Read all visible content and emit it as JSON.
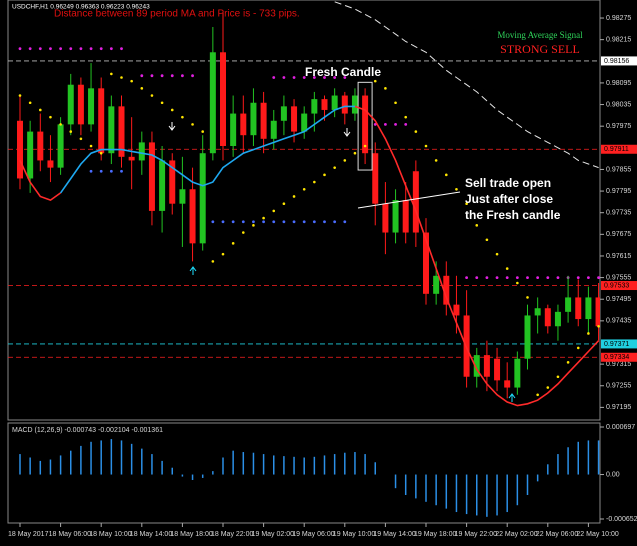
{
  "chart_data": {
    "type": "candlestick",
    "symbol_info": "USDCHF,H1 0.96249 0.96363 0.96223 0.96243",
    "distance_text": "Distance between 89 period MA and Price is - 733 pips.",
    "signal_title": "Moving Average Signal",
    "signal": "STRONG SELL",
    "annotations": [
      "Fresh Candle",
      "Sell trade open",
      "Just after close",
      "the Fresh candle"
    ],
    "categories": [
      "18 May 2017",
      null,
      null,
      null,
      "18 May 06:00",
      null,
      null,
      null,
      "18 May 10:00",
      null,
      null,
      null,
      "18 May 14:00",
      null,
      null,
      null,
      "18 May 18:00",
      null,
      null,
      null,
      "18 May 22:00",
      null,
      null,
      null,
      "19 May 02:00",
      null,
      null,
      null,
      "19 May 06:00",
      null,
      null,
      null,
      "19 May 10:00",
      null,
      null,
      null,
      "19 May 14:00",
      null,
      null,
      null,
      "19 May 18:00",
      null,
      null,
      null,
      "19 May 22:00",
      null,
      null,
      null,
      "22 May 02:00",
      null,
      null,
      null,
      "22 May 06:00",
      null,
      null,
      null,
      "22 May 10:00",
      null
    ],
    "open": [
      0.9799,
      0.9783,
      0.9796,
      0.9788,
      0.9786,
      0.9798,
      0.9809,
      0.9798,
      0.9808,
      0.979,
      0.9803,
      0.9789,
      0.9788,
      0.9793,
      0.9774,
      0.9788,
      0.9776,
      0.978,
      0.9765,
      0.979,
      0.9818,
      0.9792,
      0.9801,
      0.9795,
      0.9804,
      0.9794,
      0.9799,
      0.9803,
      0.9796,
      0.9801,
      0.9805,
      0.9802,
      0.9806,
      0.9801,
      0.9806,
      0.979,
      0.9776,
      0.9768,
      0.9777,
      0.9785,
      0.9768,
      0.9751,
      0.9756,
      0.9748,
      0.9745,
      0.9728,
      0.9734,
      0.9733,
      0.9727,
      0.9725,
      0.9733,
      0.9745,
      0.9747,
      0.9742,
      0.9746,
      0.975,
      0.9744,
      0.975
    ],
    "high": [
      0.9806,
      0.9799,
      0.9801,
      0.9795,
      0.98,
      0.9812,
      0.9811,
      0.9815,
      0.9811,
      0.9806,
      0.9806,
      0.98,
      0.9796,
      0.9796,
      0.9792,
      0.979,
      0.9789,
      0.9786,
      0.9795,
      0.9825,
      0.9829,
      0.9806,
      0.9806,
      0.9808,
      0.9807,
      0.9802,
      0.9806,
      0.9805,
      0.9803,
      0.9807,
      0.9806,
      0.9808,
      0.9807,
      0.9808,
      0.9808,
      0.9793,
      0.9782,
      0.978,
      0.9782,
      0.9788,
      0.9772,
      0.976,
      0.976,
      0.9756,
      0.9752,
      0.9736,
      0.9738,
      0.9736,
      0.9732,
      0.9735,
      0.9748,
      0.975,
      0.9748,
      0.9748,
      0.9756,
      0.9755,
      0.9753,
      0.9754
    ],
    "low": [
      0.978,
      0.9779,
      0.9785,
      0.9782,
      0.9784,
      0.9795,
      0.9795,
      0.9796,
      0.9788,
      0.9787,
      0.9786,
      0.978,
      0.9784,
      0.977,
      0.9768,
      0.9773,
      0.9764,
      0.976,
      0.9763,
      0.9788,
      0.9788,
      0.9789,
      0.979,
      0.9792,
      0.979,
      0.9791,
      0.9795,
      0.9793,
      0.9794,
      0.9796,
      0.9799,
      0.98,
      0.9798,
      0.9799,
      0.9787,
      0.977,
      0.9762,
      0.9765,
      0.9765,
      0.9764,
      0.9748,
      0.9748,
      0.9745,
      0.974,
      0.9725,
      0.9725,
      0.9724,
      0.9724,
      0.9722,
      0.9723,
      0.973,
      0.974,
      0.974,
      0.9738,
      0.9743,
      0.9742,
      0.974,
      0.9738
    ],
    "close": [
      0.9783,
      0.9796,
      0.9788,
      0.9786,
      0.9798,
      0.9809,
      0.9798,
      0.9808,
      0.979,
      0.9803,
      0.9789,
      0.9788,
      0.9793,
      0.9774,
      0.9788,
      0.9776,
      0.978,
      0.9765,
      0.979,
      0.9818,
      0.9792,
      0.9801,
      0.9795,
      0.9804,
      0.9794,
      0.9799,
      0.9803,
      0.9796,
      0.9801,
      0.9805,
      0.9802,
      0.9806,
      0.9801,
      0.9806,
      0.979,
      0.9776,
      0.9768,
      0.9777,
      0.9768,
      0.9768,
      0.9751,
      0.9756,
      0.9748,
      0.9745,
      0.9728,
      0.9734,
      0.9728,
      0.9727,
      0.9725,
      0.9733,
      0.9745,
      0.9747,
      0.9742,
      0.9746,
      0.975,
      0.9744,
      0.975,
      0.9742
    ],
    "up_color": "#22c322",
    "down_color": "#ff1a1a",
    "lines": [
      {
        "color": "#ff2a2a",
        "values": [
          0.9788,
          0.9782,
          0.9778,
          0.9777,
          0.9779,
          null,
          null,
          null,
          null,
          null,
          null,
          null,
          null,
          null,
          null,
          null,
          null,
          null,
          null,
          null,
          null,
          null,
          null,
          null,
          null,
          null,
          null,
          null,
          null,
          null,
          null,
          null,
          null,
          0.9803,
          0.9802,
          0.9799,
          0.9794,
          0.9788,
          0.9781,
          0.9774,
          0.9766,
          0.9758,
          0.975,
          0.9743,
          0.9736,
          0.973,
          0.9726,
          0.9723,
          0.9721,
          0.972,
          0.97205,
          0.97215,
          0.97235,
          0.9726,
          0.9729,
          0.9732,
          0.9735,
          0.9738
        ]
      },
      {
        "color": "#1ea8f0",
        "values": [
          null,
          null,
          null,
          null,
          0.9779,
          0.9783,
          0.9787,
          0.979,
          0.9791,
          0.9791,
          0.9791,
          0.97905,
          0.979,
          0.97895,
          0.9788,
          0.9786,
          0.9784,
          0.9782,
          0.9781,
          0.9782,
          0.9786,
          0.9788,
          0.979,
          0.9791,
          0.9792,
          0.9793,
          0.9794,
          0.9795,
          0.9796,
          0.9798,
          0.98,
          0.9802,
          0.9803,
          0.9803,
          null,
          null,
          null,
          null,
          null,
          null,
          null,
          null,
          null,
          null,
          null,
          null,
          null,
          null,
          null,
          null,
          null,
          null,
          null,
          null,
          null,
          null,
          null,
          null
        ]
      },
      {
        "color": "#e6e6e6",
        "dashed": true,
        "values": [
          null,
          null,
          null,
          null,
          null,
          null,
          null,
          null,
          null,
          null,
          null,
          null,
          null,
          null,
          null,
          null,
          null,
          null,
          null,
          null,
          null,
          null,
          null,
          null,
          null,
          null,
          null,
          null,
          null,
          null,
          null,
          0.9832,
          0.9831,
          0.983,
          0.98285,
          0.9827,
          0.9825,
          0.9823,
          0.9821,
          0.98195,
          0.9818,
          0.98155,
          0.9813,
          0.9811,
          0.9809,
          0.9807,
          0.98045,
          0.9802,
          0.98,
          0.9798,
          0.9796,
          0.97945,
          0.9793,
          0.97915,
          0.979,
          0.9788,
          0.9787,
          0.9786
        ]
      }
    ],
    "sar": {
      "color": "#ffe600",
      "values": [
        0.9806,
        0.9804,
        0.9802,
        0.98,
        0.9798,
        0.9796,
        0.9794,
        0.9792,
        0.979,
        0.9812,
        0.9811,
        0.981,
        0.9808,
        0.9806,
        0.9804,
        0.9802,
        0.98,
        0.9798,
        0.9796,
        0.976,
        0.9762,
        0.9765,
        0.9768,
        0.977,
        0.9772,
        0.9774,
        0.9776,
        0.9778,
        0.978,
        0.9782,
        0.9784,
        0.9786,
        0.9788,
        0.979,
        0.9792,
        0.981,
        0.9808,
        0.9804,
        0.98,
        0.9796,
        0.9792,
        0.9788,
        0.9784,
        0.978,
        0.9776,
        0.977,
        0.9766,
        0.9762,
        0.9758,
        0.9754,
        0.975,
        0.9723,
        0.9725,
        0.9728,
        0.9732,
        0.9736,
        0.974,
        0.9742
      ]
    },
    "dot_rows": [
      {
        "from": 0,
        "to": 10,
        "value": 0.9819,
        "color": "#e020e0"
      },
      {
        "from": 12,
        "to": 17,
        "value": 0.98115,
        "color": "#e020e0"
      },
      {
        "from": 25,
        "to": 32,
        "value": 0.9811,
        "color": "#e020e0"
      },
      {
        "from": 35,
        "to": 38,
        "value": 0.9798,
        "color": "#e020e0"
      },
      {
        "from": 44,
        "to": 57,
        "value": 0.97555,
        "color": "#e020e0"
      },
      {
        "from": 19,
        "to": 32,
        "value": 0.9771,
        "color": "#4a6cff"
      },
      {
        "from": 7,
        "to": 10,
        "value": 0.9785,
        "color": "#4a6cff"
      }
    ],
    "levels": [
      {
        "value": 0.98156,
        "color": "#bbbbbb",
        "box": "#ffffff",
        "text": "#000000"
      },
      {
        "value": 0.97911,
        "color": "#ff2020",
        "box": "#ff2020",
        "text": "#000000"
      },
      {
        "value": 0.97533,
        "color": "#ff2020",
        "box": "#ff2020",
        "text": "#000000"
      },
      {
        "value": 0.97371,
        "color": "#20d0e0",
        "box": "#20d0e0",
        "text": "#000000"
      },
      {
        "value": 0.97334,
        "color": "#ff2020",
        "box": "#ff2020",
        "text": "#000000"
      }
    ],
    "ylim": [
      0.9716,
      0.98325
    ],
    "yticks": [
      0.98275,
      0.98215,
      0.98095,
      0.98035,
      0.97975,
      0.97855,
      0.97795,
      0.97735,
      0.97675,
      0.97615,
      0.97555,
      0.97495,
      0.97435,
      0.97315,
      0.97255,
      0.97195
    ],
    "macd": {
      "label": "MACD (12,26,9) -0.000743 -0.002104 -0.001361",
      "color": "#2b8fe6",
      "ylim": [
        -0.000652,
        0.000697
      ],
      "yticks": [
        0.000697,
        {
          "value": 0,
          "label": "0.00"
        },
        -0.000652
      ],
      "values": [
        0.0003,
        0.00025,
        0.0002,
        0.00022,
        0.00028,
        0.00035,
        0.00042,
        0.00048,
        0.0005,
        0.00052,
        0.0005,
        0.00045,
        0.00038,
        0.0003,
        0.0002,
        0.0001,
        -3e-05,
        -8e-05,
        -5e-05,
        5e-05,
        0.00025,
        0.00035,
        0.00033,
        0.00032,
        0.0003,
        0.00028,
        0.00027,
        0.00026,
        0.00025,
        0.00026,
        0.00028,
        0.0003,
        0.00032,
        0.00033,
        0.0003,
        0.00018,
        0,
        -0.0002,
        -0.0003,
        -0.00035,
        -0.0004,
        -0.00045,
        -0.0005,
        -0.00055,
        -0.00058,
        -0.0006,
        -0.00062,
        -0.0006,
        -0.00055,
        -0.00045,
        -0.0003,
        -0.0001,
        0.00015,
        0.0003,
        0.0004,
        0.00048,
        0.0005,
        0.0005
      ]
    }
  }
}
